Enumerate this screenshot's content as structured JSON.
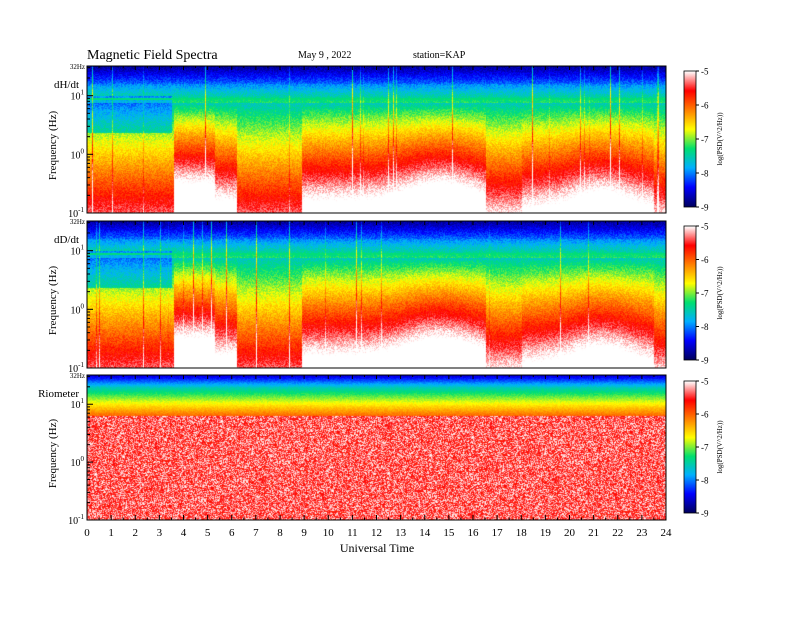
{
  "header": {
    "title": "Magnetic  Field  Spectra",
    "date": "May 9  , 2022",
    "station": "station=KAP"
  },
  "colors": {
    "background": "#ffffff",
    "colormap": [
      "#000060",
      "#0000ff",
      "#00b0ff",
      "#00e070",
      "#ffff00",
      "#ff8000",
      "#ff0000",
      "#ffffff"
    ]
  },
  "chart_data": [
    {
      "type": "heatmap",
      "panel_label": "dH/dt",
      "ylabel": "Frequency  (Hz)",
      "top_label": "32Hz",
      "y_ticks": [
        {
          "base": "10",
          "exp": "1",
          "value": 10
        },
        {
          "base": "10",
          "exp": "0",
          "value": 1
        },
        {
          "base": "10",
          "exp": "-1",
          "value": 0.1
        }
      ],
      "ylim": [
        0.1,
        32
      ],
      "log_y": true,
      "colorbar": {
        "label": "log(PSD(V^2/Hz))",
        "ticks": [
          "-5",
          "-6",
          "-7",
          "-8",
          "-9"
        ],
        "range": [
          -9,
          -5
        ]
      }
    },
    {
      "type": "heatmap",
      "panel_label": "dD/dt",
      "ylabel": "Frequency  (Hz)",
      "top_label": "32Hz",
      "y_ticks": [
        {
          "base": "10",
          "exp": "1",
          "value": 10
        },
        {
          "base": "10",
          "exp": "0",
          "value": 1
        },
        {
          "base": "10",
          "exp": "-1",
          "value": 0.1
        }
      ],
      "ylim": [
        0.1,
        32
      ],
      "log_y": true,
      "colorbar": {
        "label": "log(PSD(V^2/Hz))",
        "ticks": [
          "-5",
          "-6",
          "-7",
          "-8",
          "-9"
        ],
        "range": [
          -9,
          -5
        ]
      }
    },
    {
      "type": "heatmap",
      "panel_label": "Riometer",
      "ylabel": "Frequency  (Hz)",
      "top_label": "32Hz",
      "y_ticks": [
        {
          "base": "10",
          "exp": "1",
          "value": 10
        },
        {
          "base": "10",
          "exp": "0",
          "value": 1
        },
        {
          "base": "10",
          "exp": "-1",
          "value": 0.1
        }
      ],
      "ylim": [
        0.1,
        32
      ],
      "log_y": true,
      "colorbar": {
        "label": "log(PSD(V^2/Hz))",
        "ticks": [
          "-5",
          "-6",
          "-7",
          "-8",
          "-9"
        ],
        "range": [
          -9,
          -5
        ]
      }
    }
  ],
  "x_axis": {
    "label": "Universal  Time",
    "ticks": [
      "0",
      "1",
      "2",
      "3",
      "4",
      "5",
      "6",
      "7",
      "8",
      "9",
      "10",
      "11",
      "12",
      "13",
      "14",
      "15",
      "16",
      "17",
      "18",
      "19",
      "20",
      "21",
      "22",
      "23",
      "24"
    ],
    "range": [
      0,
      24
    ]
  }
}
